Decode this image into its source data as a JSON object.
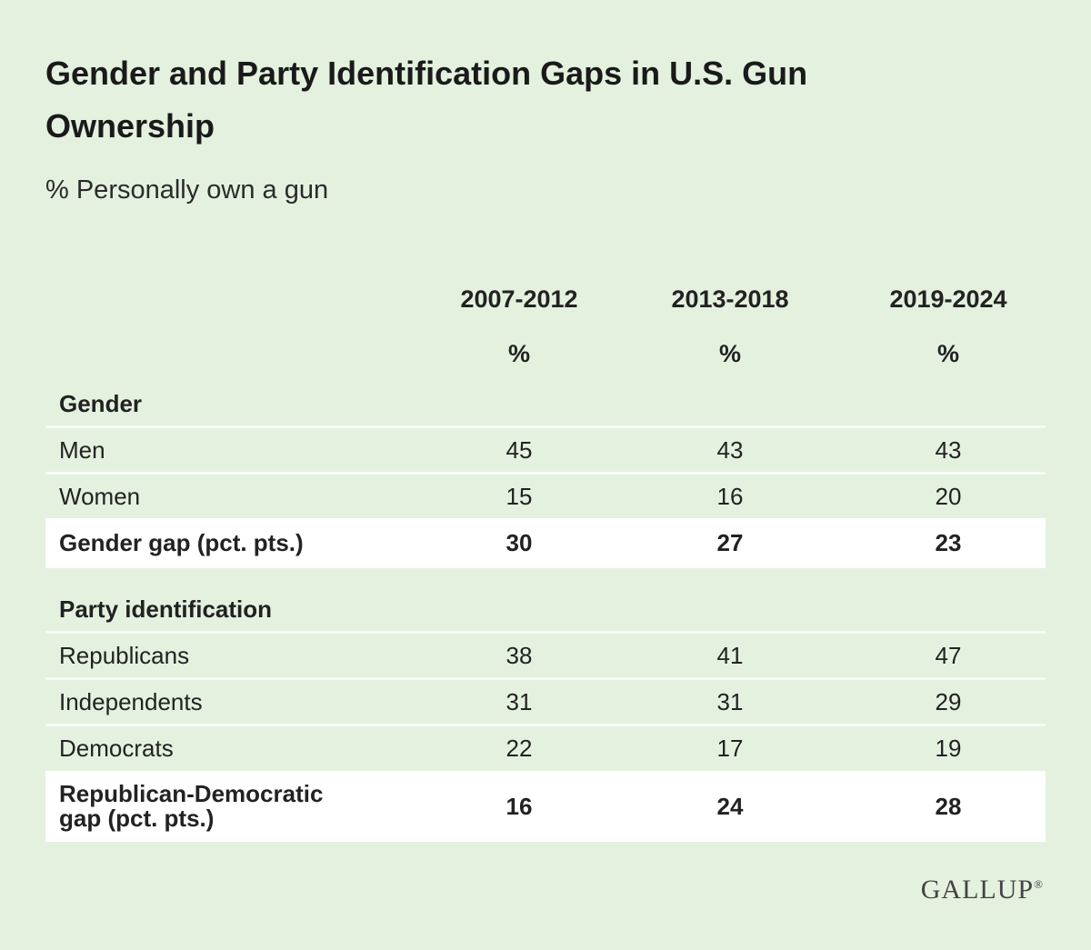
{
  "chart_data": {
    "type": "table",
    "title": "Gender and Party Identification Gaps in U.S. Gun Ownership",
    "subtitle": "% Personally own a gun",
    "columns": [
      "2007-2012",
      "2013-2018",
      "2019-2024"
    ],
    "units": [
      "%",
      "%",
      "%"
    ],
    "sections": [
      {
        "name": "Gender",
        "rows": [
          {
            "label": "Men",
            "values": [
              45,
              43,
              43
            ]
          },
          {
            "label": "Women",
            "values": [
              15,
              16,
              20
            ]
          }
        ],
        "gap": {
          "label": "Gender gap (pct. pts.)",
          "values": [
            30,
            27,
            23
          ]
        }
      },
      {
        "name": "Party identification",
        "rows": [
          {
            "label": "Republicans",
            "values": [
              38,
              41,
              47
            ]
          },
          {
            "label": "Independents",
            "values": [
              31,
              31,
              29
            ]
          },
          {
            "label": "Democrats",
            "values": [
              22,
              17,
              19
            ]
          }
        ],
        "gap": {
          "label": "Republican-Democratic gap (pct. pts.)",
          "values": [
            16,
            24,
            28
          ]
        }
      }
    ]
  },
  "brand": {
    "logo_text": "GALLUP",
    "logo_mark": "®"
  },
  "colors": {
    "background": "#e4f1df",
    "gap_row": "#ffffff",
    "text": "#222222"
  }
}
